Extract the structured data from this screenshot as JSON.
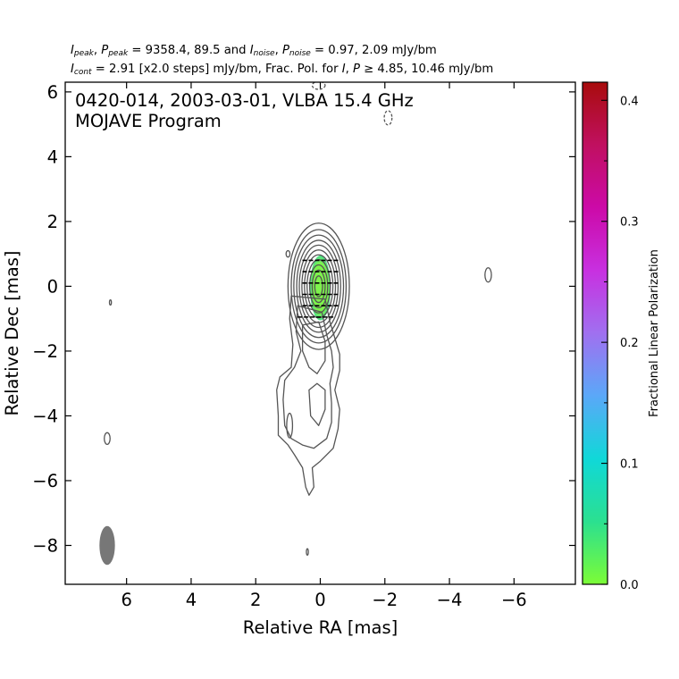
{
  "header": {
    "line1": {
      "ipeak_label": "I",
      "ipeak_sub": "peak",
      "ppeak_label": "P",
      "ppeak_sub": "peak",
      "peak_values": "9358.4, 89.5",
      "inoise_label": "I",
      "inoise_sub": "noise",
      "pnoise_label": "P",
      "pnoise_sub": "noise",
      "noise_values": "0.97, 2.09 mJy/bm"
    },
    "line2": {
      "icont_label": "I",
      "icont_sub": "cont",
      "icont_value": "2.91 [x2.0 steps] mJy/bm, Frac. Pol. for",
      "i_label": "I",
      "p_label": "P",
      "threshold": "4.85, 10.46 mJy/bm"
    }
  },
  "chart_data": {
    "type": "contour",
    "title": "0420-014, 2003-03-01, VLBA 15.4 GHz",
    "subtitle": "MOJAVE Program",
    "xlabel": "Relative RA [mas]",
    "ylabel": "Relative Dec [mas]",
    "xlim": [
      7.9,
      -7.9
    ],
    "ylim": [
      -9.2,
      6.3
    ],
    "x_ticks": [
      6,
      4,
      2,
      0,
      -2,
      -4,
      -6
    ],
    "x_tick_labels": [
      "6",
      "4",
      "2",
      "0",
      "−2",
      "−4",
      "−6"
    ],
    "y_ticks": [
      -8,
      -6,
      -4,
      -2,
      0,
      2,
      4,
      6
    ],
    "y_tick_labels": [
      "−8",
      "−6",
      "−4",
      "−2",
      "0",
      "2",
      "4",
      "6"
    ],
    "contour_color": "#555555",
    "core": {
      "x": 0.05,
      "y": 0.0,
      "levels": [
        {
          "rx": 0.95,
          "ry": 1.95
        },
        {
          "rx": 0.85,
          "ry": 1.75
        },
        {
          "rx": 0.77,
          "ry": 1.58
        },
        {
          "rx": 0.68,
          "ry": 1.42
        },
        {
          "rx": 0.6,
          "ry": 1.27
        },
        {
          "rx": 0.52,
          "ry": 1.12
        },
        {
          "rx": 0.44,
          "ry": 0.97
        },
        {
          "rx": 0.36,
          "ry": 0.82
        },
        {
          "rx": 0.28,
          "ry": 0.66
        },
        {
          "rx": 0.2,
          "ry": 0.5
        },
        {
          "rx": 0.12,
          "ry": 0.32
        }
      ]
    },
    "jet_contours": [
      [
        [
          0.9,
          -0.3
        ],
        [
          0.95,
          -1.0
        ],
        [
          0.85,
          -1.8
        ],
        [
          0.9,
          -2.5
        ],
        [
          1.25,
          -2.8
        ],
        [
          1.35,
          -3.2
        ],
        [
          1.3,
          -4.0
        ],
        [
          1.3,
          -4.6
        ],
        [
          1.0,
          -4.9
        ],
        [
          0.8,
          -5.2
        ],
        [
          0.55,
          -5.6
        ],
        [
          0.45,
          -6.2
        ],
        [
          0.35,
          -6.45
        ],
        [
          0.2,
          -6.2
        ],
        [
          0.25,
          -5.6
        ],
        [
          0.0,
          -5.4
        ],
        [
          -0.4,
          -5.0
        ],
        [
          -0.55,
          -4.4
        ],
        [
          -0.6,
          -3.8
        ],
        [
          -0.45,
          -3.2
        ],
        [
          -0.6,
          -2.6
        ],
        [
          -0.6,
          -2.1
        ],
        [
          -0.45,
          -1.6
        ],
        [
          -0.3,
          -1.1
        ],
        [
          -0.15,
          -0.4
        ],
        [
          0.9,
          -0.3
        ]
      ],
      [
        [
          0.7,
          -0.6
        ],
        [
          0.75,
          -1.4
        ],
        [
          0.6,
          -2.0
        ],
        [
          0.8,
          -2.5
        ],
        [
          1.1,
          -2.9
        ],
        [
          1.15,
          -3.5
        ],
        [
          1.1,
          -4.3
        ],
        [
          0.9,
          -4.7
        ],
        [
          0.55,
          -4.9
        ],
        [
          0.2,
          -5.0
        ],
        [
          -0.2,
          -4.7
        ],
        [
          -0.35,
          -4.2
        ],
        [
          -0.35,
          -3.6
        ],
        [
          -0.3,
          -3.0
        ],
        [
          -0.4,
          -2.5
        ],
        [
          -0.35,
          -2.0
        ],
        [
          -0.2,
          -1.5
        ],
        [
          -0.05,
          -0.8
        ],
        [
          0.7,
          -0.6
        ]
      ],
      [
        [
          0.55,
          -1.2
        ],
        [
          0.55,
          -2.0
        ],
        [
          0.35,
          -2.5
        ],
        [
          0.1,
          -2.7
        ],
        [
          -0.15,
          -2.3
        ],
        [
          -0.15,
          -1.7
        ],
        [
          0.05,
          -1.1
        ],
        [
          0.55,
          -1.2
        ]
      ],
      [
        [
          0.35,
          -3.2
        ],
        [
          0.3,
          -4.0
        ],
        [
          0.05,
          -4.3
        ],
        [
          -0.15,
          -3.8
        ],
        [
          -0.15,
          -3.2
        ],
        [
          0.1,
          -3.0
        ],
        [
          0.35,
          -3.2
        ]
      ]
    ],
    "blobs": [
      {
        "x": 0.95,
        "y": -4.3,
        "rx": 0.09,
        "ry": 0.38,
        "dashed": false
      },
      {
        "x": 6.6,
        "y": -4.7,
        "rx": 0.09,
        "ry": 0.18,
        "dashed": false
      },
      {
        "x": 6.5,
        "y": -0.5,
        "rx": 0.03,
        "ry": 0.08,
        "dashed": false
      },
      {
        "x": 0.4,
        "y": -8.2,
        "rx": 0.03,
        "ry": 0.1,
        "dashed": false
      },
      {
        "x": 1.0,
        "y": 1.0,
        "rx": 0.06,
        "ry": 0.1,
        "dashed": false
      },
      {
        "x": -5.2,
        "y": 0.35,
        "rx": 0.1,
        "ry": 0.22,
        "dashed": false
      },
      {
        "x": -2.1,
        "y": 5.2,
        "rx": 0.12,
        "ry": 0.22,
        "dashed": true
      },
      {
        "x": 0.05,
        "y": 6.2,
        "rx": 0.2,
        "ry": 0.12,
        "dashed": true
      }
    ],
    "beam": {
      "x": 6.6,
      "y": -8.0,
      "rx": 0.24,
      "ry": 0.6,
      "color": "#777777"
    },
    "polarization": {
      "x": 0.0,
      "y": -0.05,
      "rx": 0.32,
      "ry": 1.0,
      "fill_color": "#7ef34c",
      "edge_color": "#4de08a",
      "evpa_vectors": [
        {
          "x": 0.0,
          "y": 0.8
        },
        {
          "x": 0.0,
          "y": 0.45
        },
        {
          "x": 0.0,
          "y": 0.1
        },
        {
          "x": 0.0,
          "y": -0.25
        },
        {
          "x": 0.0,
          "y": -0.6
        },
        {
          "x": 0.15,
          "y": -0.95
        }
      ]
    },
    "colorbar": {
      "label": "Fractional Linear Polarization",
      "range": [
        0.0,
        0.415
      ],
      "ticks": [
        0.0,
        0.1,
        0.2,
        0.3,
        0.4
      ],
      "tick_labels": [
        "0.0",
        "0.1",
        "0.2",
        "0.3",
        "0.4"
      ],
      "colors": [
        "#7cfc36",
        "#2be090",
        "#10d8d8",
        "#5aa8f8",
        "#a070f0",
        "#c830e0",
        "#cc0aa8",
        "#c01060",
        "#a80c0c"
      ]
    }
  }
}
